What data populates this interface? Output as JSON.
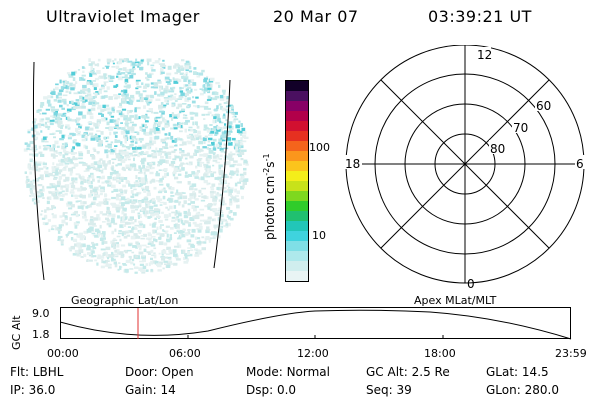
{
  "header": {
    "instrument": "Ultraviolet Imager",
    "date": "20 Mar 07",
    "time": "03:39:21 UT"
  },
  "colorbar": {
    "label": "photon cm",
    "exp1": "-2",
    "mid": "s",
    "exp2": "-1",
    "ticks": [
      {
        "label": "100",
        "value": 100
      },
      {
        "label": "10",
        "value": 10
      }
    ],
    "colors": [
      "#e9f4f4",
      "#d0eeee",
      "#aee9ec",
      "#7fdfe6",
      "#3fd3de",
      "#22c6b8",
      "#20c070",
      "#30cc2a",
      "#7ed81f",
      "#c8e21a",
      "#f4ee1a",
      "#fbc41c",
      "#fb961c",
      "#f4641c",
      "#e63020",
      "#d21030",
      "#b2004a",
      "#880066",
      "#4a1060",
      "#120028"
    ]
  },
  "polar": {
    "mlt_labels": [
      "12",
      "18",
      "6",
      "0"
    ],
    "lat_labels": [
      "60",
      "70",
      "80"
    ]
  },
  "timeline": {
    "y_axis_label": "GC Alt",
    "y_ticks": [
      "9.0",
      "1.8"
    ],
    "left_caption": "Geographic Lat/Lon",
    "right_caption": "Apex MLat/MLT",
    "x_ticks": [
      "00:00",
      "06:00",
      "12:00",
      "18:00",
      "23:59"
    ],
    "current_marker_color": "#e03030"
  },
  "footer": {
    "row1": [
      {
        "label": "Flt:",
        "value": "LBHL"
      },
      {
        "label": "Door:",
        "value": "Open"
      },
      {
        "label": "Mode:",
        "value": "Normal"
      },
      {
        "label": "GC Alt:",
        "value": "2.5 Re"
      },
      {
        "label": "GLat:",
        "value": "14.5"
      }
    ],
    "row2": [
      {
        "label": "IP:",
        "value": "36.0"
      },
      {
        "label": "Gain:",
        "value": "14"
      },
      {
        "label": "Dsp:",
        "value": "0.0"
      },
      {
        "label": "Seq:",
        "value": "39"
      },
      {
        "label": "GLon:",
        "value": "280.0"
      }
    ]
  }
}
